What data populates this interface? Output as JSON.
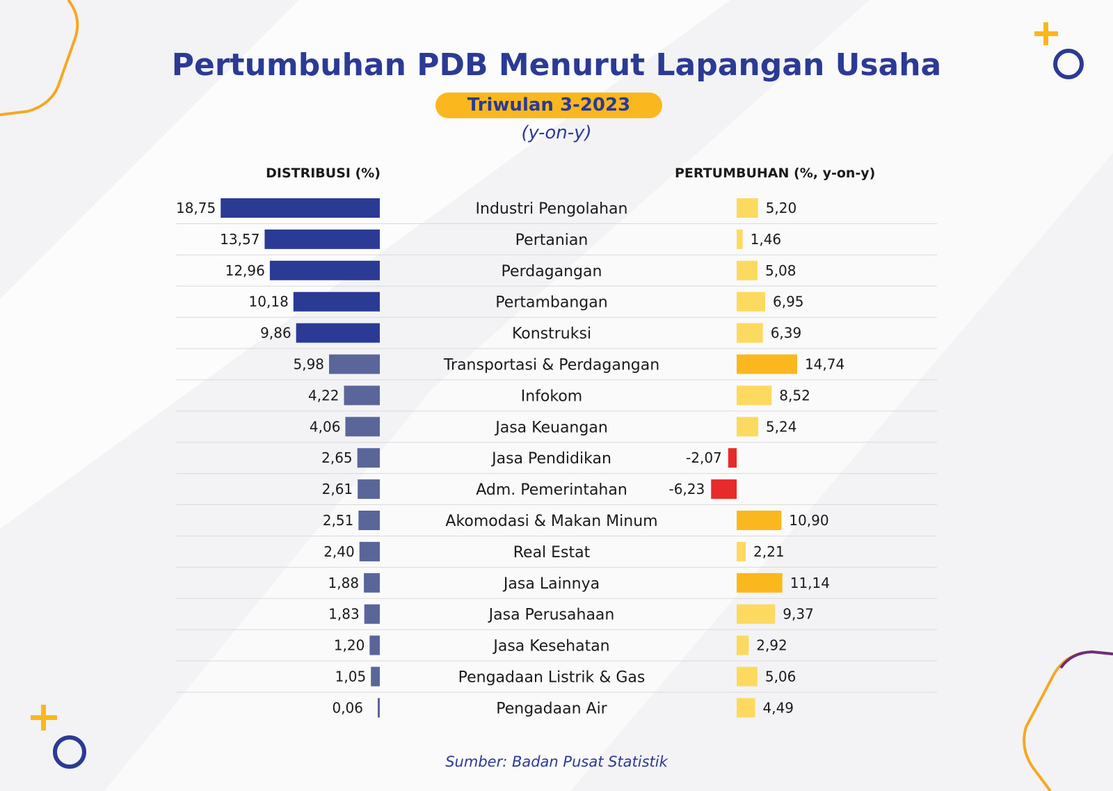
{
  "header": {
    "title": "Pertumbuhan PDB Menurut Lapangan Usaha",
    "subtitle": "Triwulan 3-2023",
    "unit_note": "(y-on-y)"
  },
  "columns": {
    "distribution": "DISTRIBUSI (%)",
    "growth": "PERTUMBUHAN (%, y-on-y)"
  },
  "footer": {
    "source": "Sumber: Badan Pusat Statistik"
  },
  "colors": {
    "title": "#2b3a95",
    "dist_top5": "#2b3a95",
    "dist_other": "#5a6699",
    "growth_normal": "#fcd95f",
    "growth_high": "#fbb81e",
    "growth_negative": "#e82a2a",
    "pill": "#fbb81e",
    "accent_orange": "#f7a823",
    "accent_purple": "#6b2d7c"
  },
  "chart_data": {
    "type": "bar",
    "categories": [
      "Industri Pengolahan",
      "Pertanian",
      "Perdagangan",
      "Pertambangan",
      "Konstruksi",
      "Transportasi & Perdagangan",
      "Infokom",
      "Jasa Keuangan",
      "Jasa Pendidikan",
      "Adm. Pemerintahan",
      "Akomodasi & Makan Minum",
      "Real Estat",
      "Jasa Lainnya",
      "Jasa Perusahaan",
      "Jasa Kesehatan",
      "Pengadaan Listrik & Gas",
      "Pengadaan Air"
    ],
    "series": [
      {
        "name": "DISTRIBUSI (%)",
        "values": [
          18.75,
          13.57,
          12.96,
          10.18,
          9.86,
          5.98,
          4.22,
          4.06,
          2.65,
          2.61,
          2.51,
          2.4,
          1.88,
          1.83,
          1.2,
          1.05,
          0.06
        ],
        "labels": [
          "18,75",
          "13,57",
          "12,96",
          "10,18",
          "9,86",
          "5,98",
          "4,22",
          "4,06",
          "2,65",
          "2,61",
          "2,51",
          "2,40",
          "1,88",
          "1,83",
          "1,20",
          "1,05",
          "0,06"
        ]
      },
      {
        "name": "PERTUMBUHAN (%, y-on-y)",
        "values": [
          5.2,
          1.46,
          5.08,
          6.95,
          6.39,
          14.74,
          8.52,
          5.24,
          -2.07,
          -6.23,
          10.9,
          2.21,
          11.14,
          9.37,
          2.92,
          5.06,
          4.49
        ],
        "labels": [
          "5,20",
          "1,46",
          "5,08",
          "6,95",
          "6,39",
          "14,74",
          "8,52",
          "5,24",
          "-2,07",
          "-6,23",
          "10,90",
          "2,21",
          "11,14",
          "9,37",
          "2,92",
          "5,06",
          "4,49"
        ]
      }
    ],
    "xlabel": "",
    "ylabel": "",
    "legend": "none"
  }
}
